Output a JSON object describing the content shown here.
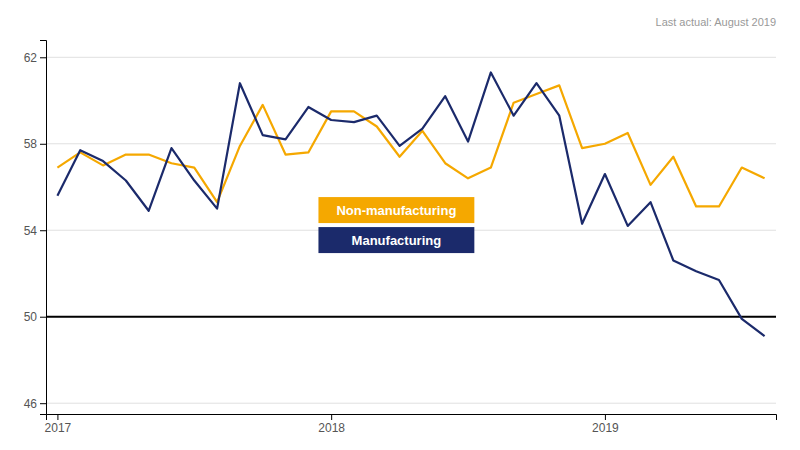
{
  "chart_data": {
    "type": "line",
    "categories": [
      "2017",
      null,
      null,
      null,
      null,
      null,
      null,
      null,
      null,
      null,
      null,
      null,
      "2018",
      null,
      null,
      null,
      null,
      null,
      null,
      null,
      null,
      null,
      null,
      null,
      "2019",
      null,
      null,
      null,
      null,
      null,
      null,
      null
    ],
    "series": [
      {
        "name": "Non-manufacturing",
        "color": "#F5A800",
        "values": [
          56.9,
          57.6,
          57.0,
          57.5,
          57.5,
          57.1,
          56.9,
          55.3,
          57.9,
          59.8,
          57.5,
          57.6,
          59.5,
          59.5,
          58.8,
          57.4,
          58.6,
          57.1,
          56.4,
          56.9,
          59.9,
          60.3,
          60.7,
          57.8,
          58.0,
          58.5,
          56.1,
          57.4,
          55.1,
          55.1,
          56.9,
          56.4
        ]
      },
      {
        "name": "Manufacturing",
        "color": "#1B2A6B",
        "values": [
          55.6,
          57.7,
          57.2,
          56.3,
          54.9,
          57.8,
          56.3,
          55.0,
          60.8,
          58.4,
          58.2,
          59.7,
          59.1,
          59.0,
          59.3,
          57.9,
          58.7,
          60.2,
          58.1,
          61.3,
          59.3,
          60.8,
          59.3,
          54.3,
          56.6,
          54.2,
          55.3,
          52.6,
          52.1,
          51.7,
          49.9,
          49.1
        ]
      }
    ],
    "threshold": 50,
    "annotation": "Last actual: August 2019",
    "ylim": [
      45.5,
      62.8
    ],
    "yticks": [
      46,
      50,
      54,
      58,
      62
    ],
    "grid": true,
    "legend": "lower center"
  }
}
